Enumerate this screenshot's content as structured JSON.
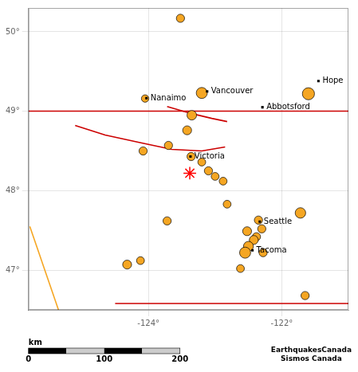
{
  "chart_data": {
    "type": "scatter",
    "xlim": [
      -125.8,
      -121.0
    ],
    "ylim": [
      46.5,
      50.3
    ],
    "xticks": [
      {
        "value": -124,
        "label": "-124°"
      },
      {
        "value": -122,
        "label": "-122°"
      }
    ],
    "yticks": [
      {
        "value": 47,
        "label": "47°"
      },
      {
        "value": 48,
        "label": "48°"
      },
      {
        "value": 49,
        "label": "49°"
      },
      {
        "value": 50,
        "label": "50°"
      }
    ],
    "grid": true,
    "series": [
      {
        "type": "line",
        "color": "#cc0000",
        "values": [
          {
            "x": -125.1,
            "y": 48.82
          },
          {
            "x": -124.65,
            "y": 48.7
          },
          {
            "x": -124.1,
            "y": 48.6
          },
          {
            "x": -123.65,
            "y": 48.52
          },
          {
            "x": -123.2,
            "y": 48.5
          },
          {
            "x": -122.85,
            "y": 48.55
          }
        ]
      },
      {
        "type": "line",
        "color": "#cc0000",
        "values": [
          {
            "x": -123.72,
            "y": 49.06
          },
          {
            "x": -123.35,
            "y": 48.97
          },
          {
            "x": -123.05,
            "y": 48.91
          },
          {
            "x": -122.82,
            "y": 48.87
          }
        ]
      },
      {
        "type": "line",
        "color": "#cc0000",
        "values": [
          {
            "x": -125.8,
            "y": 49.002
          },
          {
            "x": -121.0,
            "y": 49.002
          }
        ]
      },
      {
        "type": "line",
        "color": "#cc0000",
        "values": [
          {
            "x": -124.5,
            "y": 46.58
          },
          {
            "x": -121.0,
            "y": 46.58
          }
        ]
      },
      {
        "type": "line",
        "color": "#f5a623",
        "values": [
          {
            "x": -125.78,
            "y": 47.55
          },
          {
            "x": -125.35,
            "y": 46.5
          }
        ]
      },
      {
        "type": "scatter",
        "color": "#f5a623",
        "marker": "circle",
        "values": [
          {
            "x": -123.52,
            "y": 50.17,
            "size": 55
          },
          {
            "x": -124.05,
            "y": 49.16,
            "size": 45
          },
          {
            "x": -123.2,
            "y": 49.23,
            "size": 100
          },
          {
            "x": -123.35,
            "y": 48.95,
            "size": 75
          },
          {
            "x": -123.42,
            "y": 48.76,
            "size": 65
          },
          {
            "x": -123.7,
            "y": 48.57,
            "size": 55
          },
          {
            "x": -123.36,
            "y": 48.43,
            "size": 55
          },
          {
            "x": -123.2,
            "y": 48.36,
            "size": 50
          },
          {
            "x": -123.1,
            "y": 48.25,
            "size": 55
          },
          {
            "x": -123.0,
            "y": 48.18,
            "size": 50
          },
          {
            "x": -122.88,
            "y": 48.12,
            "size": 50
          },
          {
            "x": -121.6,
            "y": 49.22,
            "size": 120
          },
          {
            "x": -124.08,
            "y": 48.5,
            "size": 55
          },
          {
            "x": -123.72,
            "y": 47.62,
            "size": 55
          },
          {
            "x": -122.82,
            "y": 47.83,
            "size": 50
          },
          {
            "x": -122.35,
            "y": 47.63,
            "size": 55
          },
          {
            "x": -122.3,
            "y": 47.52,
            "size": 55
          },
          {
            "x": -122.52,
            "y": 47.49,
            "size": 65
          },
          {
            "x": -122.38,
            "y": 47.42,
            "size": 55
          },
          {
            "x": -122.42,
            "y": 47.38,
            "size": 65
          },
          {
            "x": -122.5,
            "y": 47.3,
            "size": 80
          },
          {
            "x": -122.55,
            "y": 47.22,
            "size": 100
          },
          {
            "x": -122.28,
            "y": 47.22,
            "size": 55
          },
          {
            "x": -124.12,
            "y": 47.12,
            "size": 50
          },
          {
            "x": -124.32,
            "y": 47.07,
            "size": 65
          },
          {
            "x": -122.62,
            "y": 47.02,
            "size": 50
          },
          {
            "x": -121.72,
            "y": 47.72,
            "size": 90
          },
          {
            "x": -121.65,
            "y": 46.68,
            "size": 55
          }
        ]
      },
      {
        "type": "scatter",
        "color": "red",
        "marker": "star",
        "values": [
          {
            "x": -123.38,
            "y": 48.22,
            "size": 130
          }
        ]
      },
      {
        "type": "scatter",
        "color": "black",
        "marker": "square",
        "values": [
          {
            "x": -124.03,
            "y": 49.165,
            "label": "Nanaimo"
          },
          {
            "x": -123.12,
            "y": 49.25,
            "label": "Vancouver"
          },
          {
            "x": -123.37,
            "y": 48.43,
            "label": "Victoria"
          },
          {
            "x": -122.29,
            "y": 49.05,
            "label": "Abbotsford"
          },
          {
            "x": -121.45,
            "y": 49.38,
            "label": "Hope"
          },
          {
            "x": -122.33,
            "y": 47.61,
            "label": "Seattle"
          },
          {
            "x": -122.44,
            "y": 47.25,
            "label": "Tacoma"
          }
        ]
      }
    ],
    "scalebar": {
      "ticks": [
        0,
        100,
        200
      ],
      "unit": "km"
    },
    "annotations": [
      "EarthquakesCanada\nSismos Canada"
    ]
  }
}
